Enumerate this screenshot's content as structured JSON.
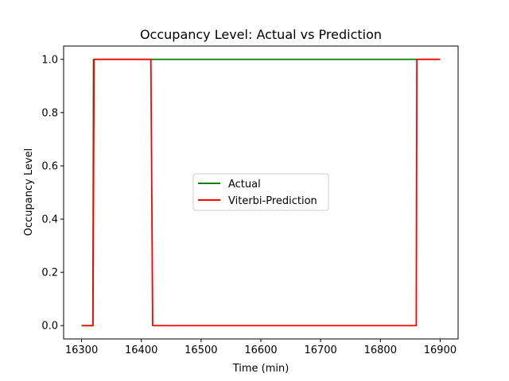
{
  "chart_data": {
    "type": "line",
    "title": "Occupancy Level: Actual vs Prediction",
    "xlabel": "Time (min)",
    "ylabel": "Occupancy Level",
    "xlim": [
      16270,
      16930
    ],
    "ylim": [
      -0.05,
      1.05
    ],
    "x_ticks": [
      16300,
      16400,
      16500,
      16600,
      16700,
      16800,
      16900
    ],
    "y_ticks": [
      0.0,
      0.2,
      0.4,
      0.6,
      0.8,
      1.0
    ],
    "x_tick_labels": [
      "16300",
      "16400",
      "16500",
      "16600",
      "16700",
      "16800",
      "16900"
    ],
    "y_tick_labels": [
      "0.0",
      "0.2",
      "0.4",
      "0.6",
      "0.8",
      "1.0"
    ],
    "grid": false,
    "legend_position": "center",
    "series": [
      {
        "name": "Actual",
        "color": "#008000",
        "x": [
          16300,
          16319,
          16320,
          16900
        ],
        "y": [
          0,
          0,
          1,
          1
        ]
      },
      {
        "name": "Viterbi-Prediction",
        "color": "#ff0000",
        "x": [
          16300,
          16319,
          16321,
          16416,
          16419,
          16860,
          16861,
          16900
        ],
        "y": [
          0,
          0,
          1,
          1,
          0,
          0,
          1,
          1
        ]
      }
    ]
  }
}
